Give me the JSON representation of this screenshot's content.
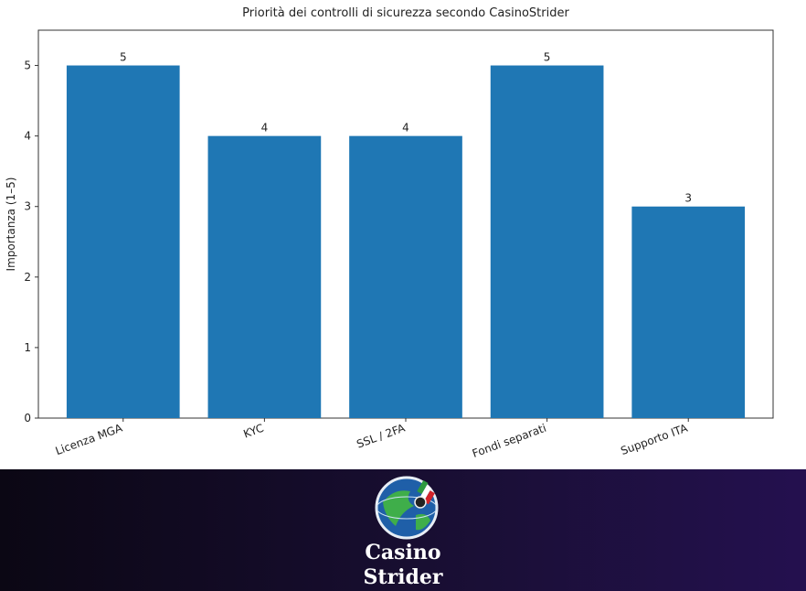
{
  "chart_data": {
    "type": "bar",
    "title": "Priorità dei controlli di sicurezza secondo CasinoStrider",
    "y_label": "Importanza (1–5)",
    "categories": [
      "Licenza MGA",
      "KYC",
      "SSL / 2FA",
      "Fondi separati",
      "Supporto ITA"
    ],
    "values": [
      5,
      4,
      4,
      5,
      3
    ],
    "color": "#1f77b4",
    "ylim": [
      0,
      5.5
    ],
    "yticks": [
      0,
      1,
      2,
      3,
      4,
      5
    ],
    "grid": false
  },
  "footer": {
    "brand_line1": "Casino",
    "brand_line2": "Strider"
  }
}
